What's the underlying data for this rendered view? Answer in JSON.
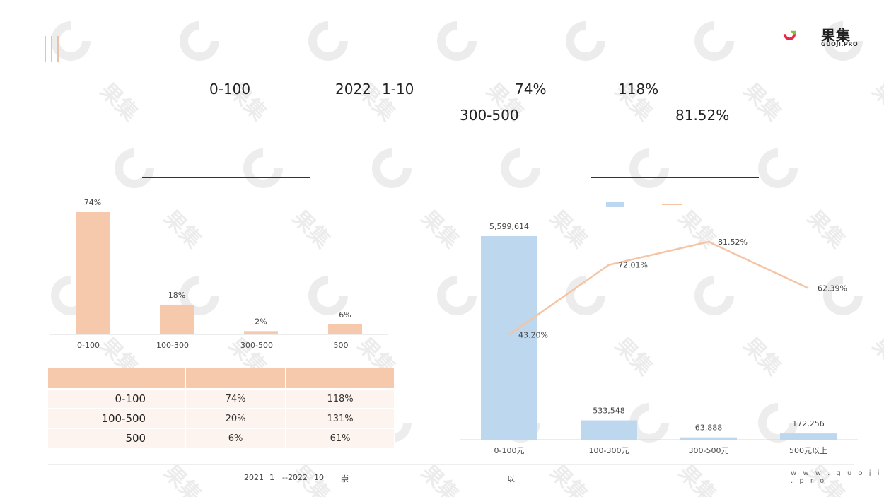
{
  "headline": {
    "line1": {
      "segment": "0-100",
      "year": "2022",
      "months": "1-10",
      "share": "74%",
      "growth": "118%"
    },
    "line2": {
      "segment": "300-500",
      "value": "81.52%"
    }
  },
  "brand": {
    "name": "果集",
    "sub": "GUOJI.PRO",
    "site": "w w w . g u o j i . p r o"
  },
  "watermark_text": "果集",
  "colors": {
    "bar_left": "#f6c9ac",
    "bar_right": "#bcd7ee",
    "line": "#f4c4a5",
    "table_header": "#f6c9ac",
    "table_row": "#fdf4ef"
  },
  "chart_data": [
    {
      "type": "bar",
      "categories": [
        "0-100",
        "100-300",
        "300-500",
        "500"
      ],
      "values": [
        74,
        18,
        2,
        6
      ],
      "labels": [
        "74%",
        "18%",
        "2%",
        "6%"
      ],
      "ylim": [
        0,
        80
      ]
    },
    {
      "type": "bar+line",
      "categories": [
        "0-100元",
        "100-300元",
        "300-500元",
        "500元以上"
      ],
      "series": [
        {
          "type": "bar",
          "values": [
            5599614,
            533548,
            63888,
            172256
          ],
          "labels": [
            "5,599,614",
            "533,548",
            "63,888",
            "172,256"
          ]
        },
        {
          "type": "line",
          "values": [
            43.2,
            72.01,
            81.52,
            62.39
          ],
          "labels": [
            "43.20%",
            "72.01%",
            "81.52%",
            "62.39%"
          ]
        }
      ],
      "ylim_bar": [
        0,
        6300000
      ],
      "ylim_line": [
        0,
        100
      ]
    }
  ],
  "table": {
    "rows": [
      {
        "segment": "0-100",
        "share": "74%",
        "growth": "118%"
      },
      {
        "segment": "100-500",
        "share": "20%",
        "growth": "131%"
      },
      {
        "segment": "500",
        "share": "6%",
        "growth": "61%"
      }
    ]
  },
  "footer": {
    "part1": "2021",
    "part2": "1",
    "part3": "--2022",
    "part4": "10",
    "part5": "崇",
    "part6": "以"
  }
}
